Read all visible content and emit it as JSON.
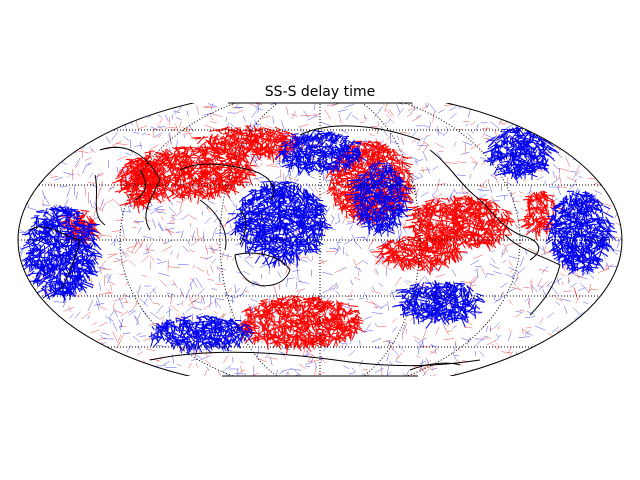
{
  "title": "SS-S delay time"
}
